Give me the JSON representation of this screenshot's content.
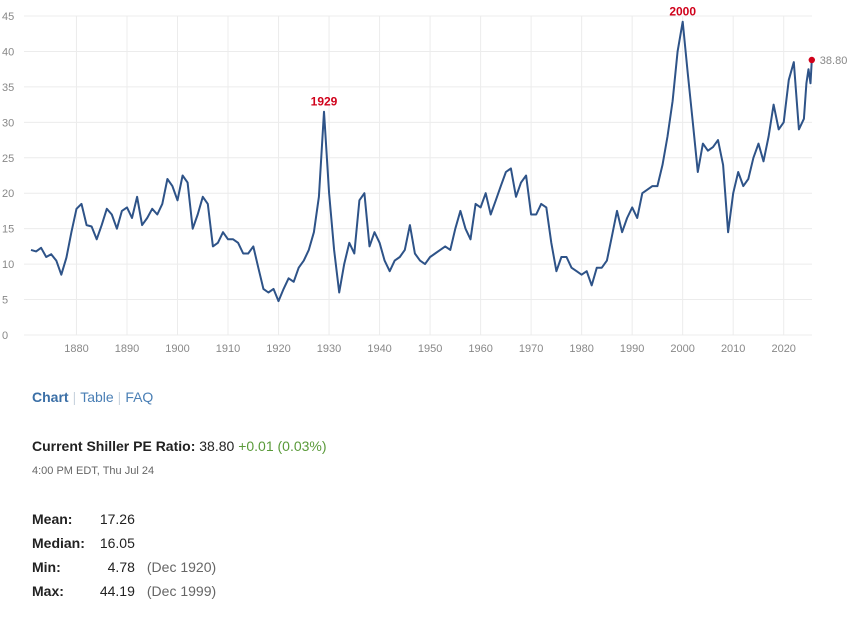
{
  "chart_data": {
    "type": "line",
    "series": [
      {
        "values": [
          [
            1871,
            12.0
          ],
          [
            1872,
            11.8
          ],
          [
            1873,
            12.3
          ],
          [
            1874,
            11.0
          ],
          [
            1875,
            11.4
          ],
          [
            1876,
            10.5
          ],
          [
            1877,
            8.5
          ],
          [
            1878,
            10.9
          ],
          [
            1879,
            14.5
          ],
          [
            1880,
            17.8
          ],
          [
            1881,
            18.5
          ],
          [
            1882,
            15.5
          ],
          [
            1883,
            15.3
          ],
          [
            1884,
            13.5
          ],
          [
            1885,
            15.5
          ],
          [
            1886,
            17.8
          ],
          [
            1887,
            17.0
          ],
          [
            1888,
            15.0
          ],
          [
            1889,
            17.5
          ],
          [
            1890,
            18.0
          ],
          [
            1891,
            16.5
          ],
          [
            1892,
            19.5
          ],
          [
            1893,
            15.5
          ],
          [
            1894,
            16.5
          ],
          [
            1895,
            17.8
          ],
          [
            1896,
            17.0
          ],
          [
            1897,
            18.5
          ],
          [
            1898,
            22.0
          ],
          [
            1899,
            21.0
          ],
          [
            1900,
            19.0
          ],
          [
            1901,
            22.5
          ],
          [
            1902,
            21.5
          ],
          [
            1903,
            15.0
          ],
          [
            1904,
            17.0
          ],
          [
            1905,
            19.5
          ],
          [
            1906,
            18.5
          ],
          [
            1907,
            12.5
          ],
          [
            1908,
            13.0
          ],
          [
            1909,
            14.5
          ],
          [
            1910,
            13.5
          ],
          [
            1911,
            13.5
          ],
          [
            1912,
            13.0
          ],
          [
            1913,
            11.5
          ],
          [
            1914,
            11.5
          ],
          [
            1915,
            12.5
          ],
          [
            1916,
            9.5
          ],
          [
            1917,
            6.5
          ],
          [
            1918,
            6.0
          ],
          [
            1919,
            6.5
          ],
          [
            1920,
            4.78
          ],
          [
            1921,
            6.5
          ],
          [
            1922,
            8.0
          ],
          [
            1923,
            7.5
          ],
          [
            1924,
            9.5
          ],
          [
            1925,
            10.5
          ],
          [
            1926,
            12.0
          ],
          [
            1927,
            14.5
          ],
          [
            1928,
            19.5
          ],
          [
            1929,
            31.5
          ],
          [
            1930,
            20.0
          ],
          [
            1931,
            12.0
          ],
          [
            1932,
            6.0
          ],
          [
            1933,
            10.0
          ],
          [
            1934,
            13.0
          ],
          [
            1935,
            11.5
          ],
          [
            1936,
            19.0
          ],
          [
            1937,
            20.0
          ],
          [
            1938,
            12.5
          ],
          [
            1939,
            14.5
          ],
          [
            1940,
            13.0
          ],
          [
            1941,
            10.5
          ],
          [
            1942,
            9.0
          ],
          [
            1943,
            10.5
          ],
          [
            1944,
            11.0
          ],
          [
            1945,
            12.0
          ],
          [
            1946,
            15.5
          ],
          [
            1947,
            11.5
          ],
          [
            1948,
            10.5
          ],
          [
            1949,
            10.0
          ],
          [
            1950,
            11.0
          ],
          [
            1951,
            11.5
          ],
          [
            1952,
            12.0
          ],
          [
            1953,
            12.5
          ],
          [
            1954,
            12.0
          ],
          [
            1955,
            15.0
          ],
          [
            1956,
            17.5
          ],
          [
            1957,
            15.0
          ],
          [
            1958,
            13.5
          ],
          [
            1959,
            18.5
          ],
          [
            1960,
            18.0
          ],
          [
            1961,
            20.0
          ],
          [
            1962,
            17.0
          ],
          [
            1963,
            19.0
          ],
          [
            1964,
            21.0
          ],
          [
            1965,
            23.0
          ],
          [
            1966,
            23.5
          ],
          [
            1967,
            19.5
          ],
          [
            1968,
            21.5
          ],
          [
            1969,
            22.5
          ],
          [
            1970,
            17.0
          ],
          [
            1971,
            17.0
          ],
          [
            1972,
            18.5
          ],
          [
            1973,
            18.0
          ],
          [
            1974,
            13.0
          ],
          [
            1975,
            9.0
          ],
          [
            1976,
            11.0
          ],
          [
            1977,
            11.0
          ],
          [
            1978,
            9.5
          ],
          [
            1979,
            9.0
          ],
          [
            1980,
            8.5
          ],
          [
            1981,
            9.0
          ],
          [
            1982,
            7.0
          ],
          [
            1983,
            9.5
          ],
          [
            1984,
            9.5
          ],
          [
            1985,
            10.5
          ],
          [
            1986,
            14.0
          ],
          [
            1987,
            17.5
          ],
          [
            1988,
            14.5
          ],
          [
            1989,
            16.5
          ],
          [
            1990,
            18.0
          ],
          [
            1991,
            16.5
          ],
          [
            1992,
            20.0
          ],
          [
            1993,
            20.5
          ],
          [
            1994,
            21.0
          ],
          [
            1995,
            21.0
          ],
          [
            1996,
            24.0
          ],
          [
            1997,
            28.0
          ],
          [
            1998,
            33.0
          ],
          [
            1999,
            40.0
          ],
          [
            2000,
            44.19
          ],
          [
            2001,
            37.0
          ],
          [
            2002,
            30.0
          ],
          [
            2003,
            23.0
          ],
          [
            2004,
            27.0
          ],
          [
            2005,
            26.0
          ],
          [
            2006,
            26.5
          ],
          [
            2007,
            27.5
          ],
          [
            2008,
            24.0
          ],
          [
            2009,
            14.5
          ],
          [
            2010,
            20.0
          ],
          [
            2011,
            23.0
          ],
          [
            2012,
            21.0
          ],
          [
            2013,
            22.0
          ],
          [
            2014,
            25.0
          ],
          [
            2015,
            27.0
          ],
          [
            2016,
            24.5
          ],
          [
            2017,
            28.0
          ],
          [
            2018,
            32.5
          ],
          [
            2019,
            29.0
          ],
          [
            2020,
            30.0
          ],
          [
            2021,
            36.0
          ],
          [
            2022,
            38.5
          ],
          [
            2023,
            29.0
          ],
          [
            2024,
            30.5
          ],
          [
            2024.5,
            35.5
          ],
          [
            2024.9,
            37.5
          ],
          [
            2025.3,
            35.5
          ],
          [
            2025.56,
            38.8
          ]
        ]
      }
    ],
    "xlim": [
      1871,
      2025.6
    ],
    "ylim": [
      0,
      45
    ],
    "x_ticks": [
      1880,
      1890,
      1900,
      1910,
      1920,
      1930,
      1940,
      1950,
      1960,
      1970,
      1980,
      1990,
      2000,
      2010,
      2020
    ],
    "y_ticks": [
      0,
      5,
      10,
      15,
      20,
      25,
      30,
      35,
      40,
      45
    ],
    "annotations": [
      {
        "text": "1929",
        "x": 1929,
        "y": 31.5
      },
      {
        "text": "2000",
        "x": 2000,
        "y": 44.19
      }
    ],
    "end_value_label": "38.80",
    "grid": true,
    "line_color": "#2e5388",
    "annotation_color": "#d0021b"
  },
  "tabs": [
    {
      "label": "Chart",
      "active": true
    },
    {
      "label": "Table",
      "active": false
    },
    {
      "label": "FAQ",
      "active": false
    }
  ],
  "current": {
    "label": "Current Shiller PE Ratio:",
    "value": "38.80",
    "change": "+0.01 (0.03%)",
    "timestamp": "4:00 PM EDT, Thu Jul 24"
  },
  "stats": [
    {
      "label": "Mean:",
      "value": "17.26",
      "date": ""
    },
    {
      "label": "Median:",
      "value": "16.05",
      "date": ""
    },
    {
      "label": "Min:",
      "value": "4.78",
      "date": "(Dec 1920)"
    },
    {
      "label": "Max:",
      "value": "44.19",
      "date": "(Dec 1999)"
    }
  ]
}
